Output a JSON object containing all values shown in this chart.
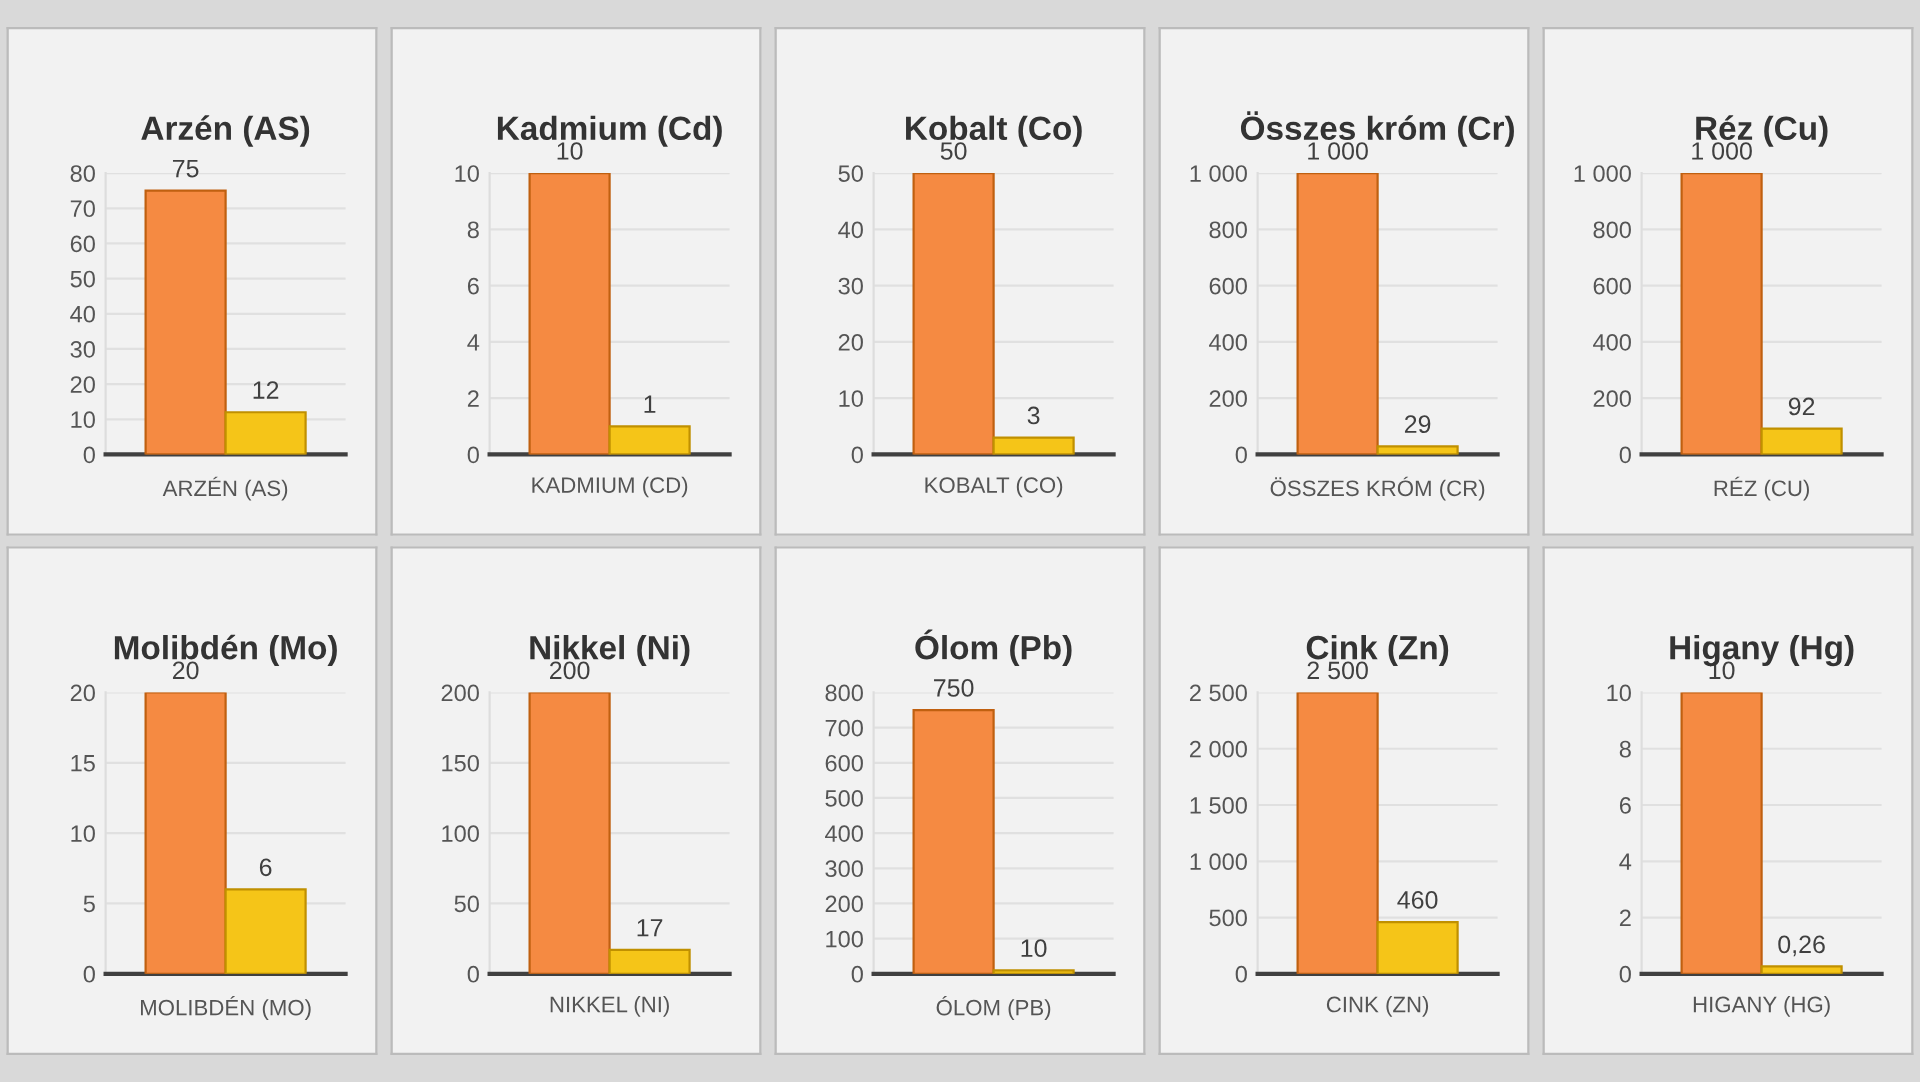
{
  "chart_data": [
    {
      "type": "bar",
      "title": "Arzén (AS)",
      "categories": [
        "ARZÉN (AS)"
      ],
      "series": [
        {
          "color": "#f58a42",
          "values": [
            75
          ],
          "value_labels": [
            "75"
          ]
        },
        {
          "color": "#f5c518",
          "values": [
            12
          ],
          "value_labels": [
            "12"
          ]
        }
      ],
      "ylim": [
        0,
        80
      ],
      "yticks": [
        0,
        10,
        20,
        30,
        40,
        50,
        60,
        70,
        80
      ],
      "grid": "y"
    },
    {
      "type": "bar",
      "title": "Kadmium (Cd)",
      "categories": [
        "KADMIUM (CD)"
      ],
      "series": [
        {
          "color": "#f58a42",
          "values": [
            10
          ],
          "value_labels": [
            "10"
          ]
        },
        {
          "color": "#f5c518",
          "values": [
            1
          ],
          "value_labels": [
            "1"
          ]
        }
      ],
      "ylim": [
        0,
        10
      ],
      "yticks": [
        0,
        2,
        4,
        6,
        8,
        10
      ],
      "grid": "y"
    },
    {
      "type": "bar",
      "title": "Kobalt (Co)",
      "categories": [
        "KOBALT (CO)"
      ],
      "series": [
        {
          "color": "#f58a42",
          "values": [
            50
          ],
          "value_labels": [
            "50"
          ]
        },
        {
          "color": "#f5c518",
          "values": [
            3
          ],
          "value_labels": [
            "3"
          ]
        }
      ],
      "ylim": [
        0,
        50
      ],
      "yticks": [
        0,
        10,
        20,
        30,
        40,
        50
      ],
      "grid": "y"
    },
    {
      "type": "bar",
      "title": "Összes króm (Cr)",
      "categories": [
        "ÖSSZES KRÓM (CR)"
      ],
      "series": [
        {
          "color": "#f58a42",
          "values": [
            1000
          ],
          "value_labels": [
            "1 000"
          ]
        },
        {
          "color": "#f5c518",
          "values": [
            29
          ],
          "value_labels": [
            "29"
          ]
        }
      ],
      "ylim": [
        0,
        1000
      ],
      "yticks": [
        0,
        200,
        400,
        600,
        800,
        {
          "value": 1000,
          "label": "1 000"
        }
      ],
      "grid": "y"
    },
    {
      "type": "bar",
      "title": "Réz (Cu)",
      "categories": [
        "RÉZ (CU)"
      ],
      "series": [
        {
          "color": "#f58a42",
          "values": [
            1000
          ],
          "value_labels": [
            "1 000"
          ]
        },
        {
          "color": "#f5c518",
          "values": [
            92
          ],
          "value_labels": [
            "92"
          ]
        }
      ],
      "ylim": [
        0,
        1000
      ],
      "yticks": [
        0,
        200,
        400,
        600,
        800,
        {
          "value": 1000,
          "label": "1 000"
        }
      ],
      "grid": "y"
    },
    {
      "type": "bar",
      "title": "Molibdén (Mo)",
      "categories": [
        "MOLIBDÉN (MO)"
      ],
      "series": [
        {
          "color": "#f58a42",
          "values": [
            20
          ],
          "value_labels": [
            "20"
          ]
        },
        {
          "color": "#f5c518",
          "values": [
            6
          ],
          "value_labels": [
            "6"
          ]
        }
      ],
      "ylim": [
        0,
        20
      ],
      "yticks": [
        0,
        5,
        10,
        15,
        20
      ],
      "grid": "y"
    },
    {
      "type": "bar",
      "title": "Nikkel (Ni)",
      "categories": [
        "NIKKEL (NI)"
      ],
      "series": [
        {
          "color": "#f58a42",
          "values": [
            200
          ],
          "value_labels": [
            "200"
          ]
        },
        {
          "color": "#f5c518",
          "values": [
            17
          ],
          "value_labels": [
            "17"
          ]
        }
      ],
      "ylim": [
        0,
        200
      ],
      "yticks": [
        0,
        50,
        100,
        150,
        200
      ],
      "grid": "y"
    },
    {
      "type": "bar",
      "title": "Ólom (Pb)",
      "categories": [
        "ÓLOM (PB)"
      ],
      "series": [
        {
          "color": "#f58a42",
          "values": [
            750
          ],
          "value_labels": [
            "750"
          ]
        },
        {
          "color": "#f5c518",
          "values": [
            10
          ],
          "value_labels": [
            "10"
          ]
        }
      ],
      "ylim": [
        0,
        800
      ],
      "yticks": [
        0,
        100,
        200,
        300,
        400,
        500,
        600,
        700,
        800
      ],
      "grid": "y"
    },
    {
      "type": "bar",
      "title": "Cink (Zn)",
      "categories": [
        "CINK (ZN)"
      ],
      "series": [
        {
          "color": "#f58a42",
          "values": [
            2500
          ],
          "value_labels": [
            "2 500"
          ]
        },
        {
          "color": "#f5c518",
          "values": [
            460
          ],
          "value_labels": [
            "460"
          ]
        }
      ],
      "ylim": [
        0,
        2500
      ],
      "yticks": [
        0,
        500,
        {
          "value": 1000,
          "label": "1 000"
        },
        {
          "value": 1500,
          "label": "1 500"
        },
        {
          "value": 2000,
          "label": "2 000"
        },
        {
          "value": 2500,
          "label": "2 500"
        }
      ],
      "grid": "y"
    },
    {
      "type": "bar",
      "title": "Higany (Hg)",
      "categories": [
        "HIGANY (HG)"
      ],
      "series": [
        {
          "color": "#f58a42",
          "values": [
            10
          ],
          "value_labels": [
            "10"
          ]
        },
        {
          "color": "#f5c518",
          "values": [
            0.26
          ],
          "value_labels": [
            "0,26"
          ]
        }
      ],
      "ylim": [
        0,
        10
      ],
      "yticks": [
        0,
        2,
        4,
        6,
        8,
        10
      ],
      "grid": "y"
    }
  ]
}
